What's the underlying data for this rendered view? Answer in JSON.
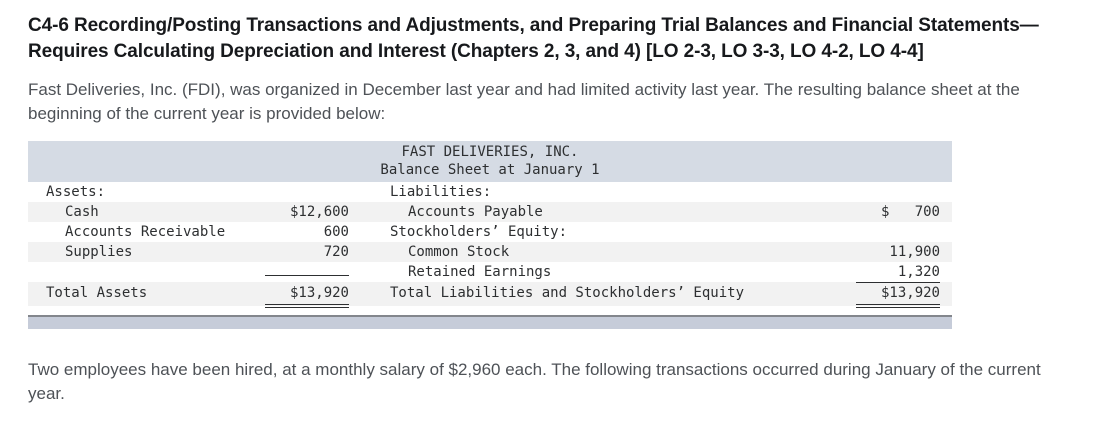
{
  "title": "C4-6 Recording/Posting Transactions and Adjustments, and Preparing Trial Balances and Financial Statements—Requires Calculating Depreciation and Interest (Chapters 2, 3, and 4) [LO 2-3, LO 3-3, LO 4-2, LO 4-4]",
  "paragraphs": {
    "intro": "Fast Deliveries, Inc. (FDI), was organized in December last year and had limited activity last year. The resulting balance sheet at the beginning of the current year is provided below:",
    "followup": "Two employees have been hired, at a monthly salary of $2,960 each. The following transactions occurred during January of the current year."
  },
  "balance_sheet": {
    "company": "FAST DELIVERIES, INC.",
    "statement_title": "Balance Sheet at January 1",
    "colors": {
      "header_band": "#d5dbe4",
      "row_stripe": "#f2f2f2",
      "footer_bar": "#c6ccd9",
      "footer_bar_border": "#83868c"
    },
    "rows": [
      {
        "left_label": "Assets:",
        "left_amount": "",
        "right_label": "Liabilities:",
        "right_amount": ""
      },
      {
        "left_label": "Cash",
        "left_amount": "$12,600",
        "right_label": "Accounts Payable",
        "right_amount": "$   700"
      },
      {
        "left_label": "Accounts Receivable",
        "left_amount": "600",
        "right_label": "Stockholders’ Equity:",
        "right_amount": ""
      },
      {
        "left_label": "Supplies",
        "left_amount": "720",
        "right_label": "Common Stock",
        "right_amount": "11,900"
      },
      {
        "left_label": "",
        "left_amount": "",
        "right_label": "Retained Earnings",
        "right_amount": "1,320"
      },
      {
        "left_label": "Total Assets",
        "left_amount": "$13,920",
        "right_label": "Total Liabilities and Stockholders’ Equity",
        "right_amount": "$13,920"
      }
    ]
  }
}
